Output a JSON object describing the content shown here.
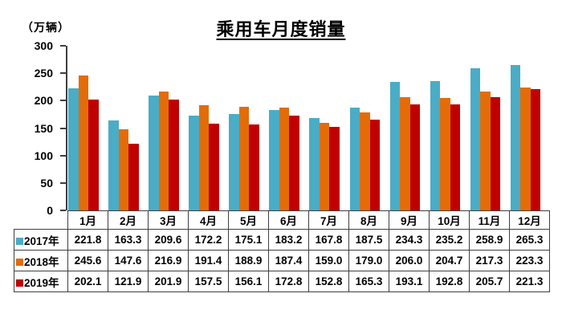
{
  "chart_data": {
    "type": "bar",
    "title": "乘用车月度销量",
    "unit_label": "（万辆）",
    "categories": [
      "1月",
      "2月",
      "3月",
      "4月",
      "5月",
      "6月",
      "7月",
      "8月",
      "9月",
      "10月",
      "11月",
      "12月"
    ],
    "series": [
      {
        "name": "2017年",
        "color": "#4BACC6",
        "values": [
          221.8,
          163.3,
          209.6,
          172.2,
          175.1,
          183.2,
          167.8,
          187.5,
          234.3,
          235.2,
          258.9,
          265.3
        ]
      },
      {
        "name": "2018年",
        "color": "#E36C09",
        "values": [
          245.6,
          147.6,
          216.9,
          191.4,
          188.9,
          187.4,
          159.0,
          179.0,
          206.0,
          204.7,
          217.3,
          223.3
        ]
      },
      {
        "name": "2019年",
        "color": "#C00000",
        "values": [
          202.1,
          121.9,
          201.9,
          157.5,
          156.1,
          172.8,
          152.8,
          165.3,
          193.1,
          192.8,
          205.7,
          221.3
        ]
      }
    ],
    "ylim": [
      0,
      300
    ],
    "yticks": [
      0,
      50,
      100,
      150,
      200,
      250,
      300
    ],
    "grid": false,
    "legend_position": "table-row-headers",
    "value_format_decimals": 1
  }
}
